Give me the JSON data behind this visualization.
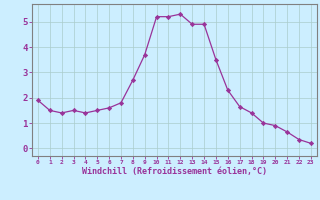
{
  "x": [
    0,
    1,
    2,
    3,
    4,
    5,
    6,
    7,
    8,
    9,
    10,
    11,
    12,
    13,
    14,
    15,
    16,
    17,
    18,
    19,
    20,
    21,
    22,
    23
  ],
  "y": [
    1.9,
    1.5,
    1.4,
    1.5,
    1.4,
    1.5,
    1.6,
    1.8,
    2.7,
    3.7,
    5.2,
    5.2,
    5.3,
    4.9,
    4.9,
    3.5,
    2.3,
    1.65,
    1.4,
    1.0,
    0.9,
    0.65,
    0.35,
    0.2
  ],
  "xlim": [
    -0.5,
    23.5
  ],
  "ylim": [
    -0.3,
    5.7
  ],
  "yticks": [
    0,
    1,
    2,
    3,
    4,
    5
  ],
  "xticks": [
    0,
    1,
    2,
    3,
    4,
    5,
    6,
    7,
    8,
    9,
    10,
    11,
    12,
    13,
    14,
    15,
    16,
    17,
    18,
    19,
    20,
    21,
    22,
    23
  ],
  "xlabel": "Windchill (Refroidissement éolien,°C)",
  "line_color": "#993399",
  "marker": "D",
  "marker_size": 2.2,
  "bg_color": "#cceeff",
  "grid_color": "#aacccc",
  "axis_color": "#993399",
  "tick_color": "#993399",
  "label_color": "#993399",
  "spine_color": "#808080"
}
